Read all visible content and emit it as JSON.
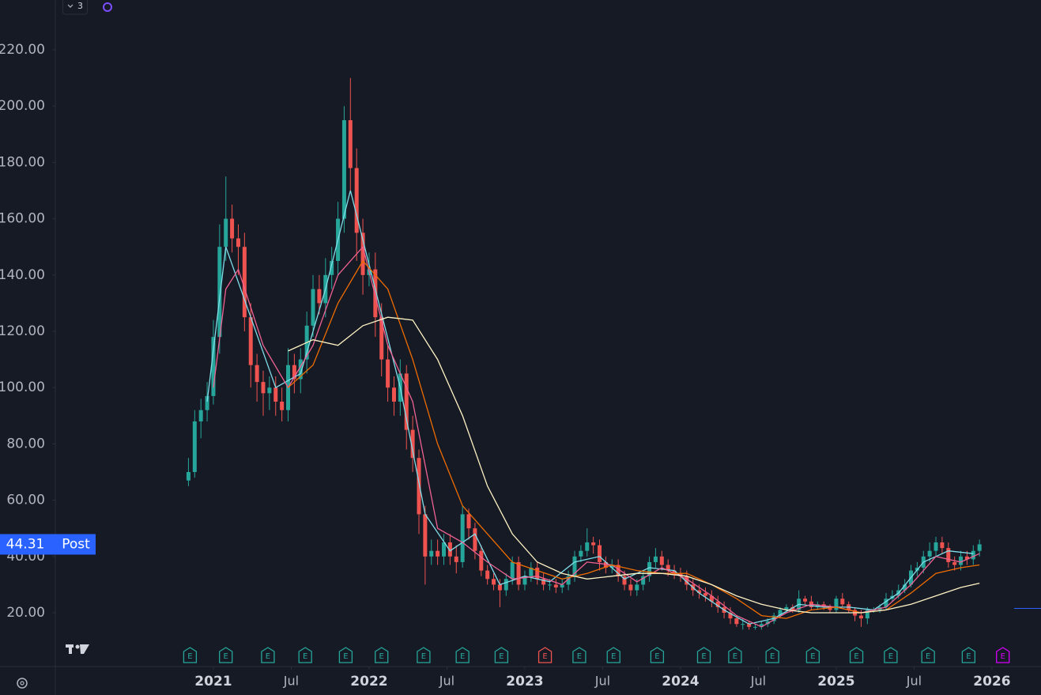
{
  "chart_data": {
    "type": "candlestick",
    "indicator_count": 3,
    "session_label": "Post",
    "up_color": "#26a69a",
    "down_color": "#ef5350",
    "xlim": [
      2019.985,
      2026.315
    ],
    "ylim": [
      0.9,
      237.7
    ],
    "yticks": [
      {
        "value": 20,
        "label": "20.00"
      },
      {
        "value": 40,
        "label": "40.00"
      },
      {
        "value": 60,
        "label": "60.00"
      },
      {
        "value": 80,
        "label": "80.00"
      },
      {
        "value": 100,
        "label": "100.00"
      },
      {
        "value": 120,
        "label": "120.00"
      },
      {
        "value": 140,
        "label": "140.00"
      },
      {
        "value": 160,
        "label": "160.00"
      },
      {
        "value": 180,
        "label": "180.00"
      },
      {
        "value": 200,
        "label": "200.00"
      },
      {
        "value": 220,
        "label": "220.00"
      }
    ],
    "xticks": [
      2021,
      {
        "value": 2021.5,
        "label": "Jul"
      },
      2022,
      {
        "value": 2022.5,
        "label": "Jul"
      },
      2023,
      {
        "value": 2023.5,
        "label": "Jul"
      },
      2024,
      {
        "value": 2024.5,
        "label": "Jul"
      },
      2025,
      {
        "value": 2025.5,
        "label": "Jul"
      },
      2026
    ],
    "x": [
      2020.84,
      2020.88,
      2020.92,
      2020.96,
      2021,
      2021.04,
      2021.08,
      2021.12,
      2021.16,
      2021.2,
      2021.24,
      2021.28,
      2021.32,
      2021.36,
      2021.4,
      2021.44,
      2021.48,
      2021.52,
      2021.56,
      2021.6,
      2021.64,
      2021.68,
      2021.72,
      2021.76,
      2021.8,
      2021.84,
      2021.88,
      2021.92,
      2021.96,
      2022,
      2022.04,
      2022.08,
      2022.12,
      2022.16,
      2022.2,
      2022.24,
      2022.28,
      2022.32,
      2022.36,
      2022.4,
      2022.44,
      2022.48,
      2022.52,
      2022.56,
      2022.6,
      2022.64,
      2022.68,
      2022.72,
      2022.76,
      2022.8,
      2022.84,
      2022.88,
      2022.92,
      2022.96,
      2023,
      2023.04,
      2023.08,
      2023.12,
      2023.16,
      2023.2,
      2023.24,
      2023.28,
      2023.32,
      2023.36,
      2023.4,
      2023.44,
      2023.48,
      2023.52,
      2023.56,
      2023.6,
      2023.64,
      2023.68,
      2023.72,
      2023.76,
      2023.8,
      2023.84,
      2023.88,
      2023.92,
      2023.96,
      2024,
      2024.04,
      2024.08,
      2024.12,
      2024.16,
      2024.2,
      2024.24,
      2024.28,
      2024.32,
      2024.36,
      2024.4,
      2024.44,
      2024.48,
      2024.52,
      2024.56,
      2024.6,
      2024.64,
      2024.68,
      2024.72,
      2024.76,
      2024.8,
      2024.84,
      2024.88,
      2024.92,
      2024.96,
      2025,
      2025.04,
      2025.08,
      2025.12,
      2025.16,
      2025.2,
      2025.24,
      2025.28,
      2025.32,
      2025.36,
      2025.4,
      2025.44,
      2025.48,
      2025.52,
      2025.56,
      2025.6,
      2025.64,
      2025.68,
      2025.72,
      2025.76,
      2025.8,
      2025.84,
      2025.88,
      2025.92
    ],
    "open": [
      67,
      70,
      88,
      92,
      97,
      118,
      150,
      160,
      153,
      150,
      125,
      108,
      102,
      98,
      100,
      95,
      92,
      108,
      103,
      110,
      122,
      135,
      130,
      140,
      145,
      160,
      195,
      178,
      155,
      140,
      142,
      125,
      110,
      100,
      95,
      105,
      85,
      75,
      55,
      40,
      42,
      40,
      45,
      40,
      38,
      55,
      50,
      42,
      35,
      32,
      30,
      28,
      32,
      38,
      30,
      33,
      36,
      32,
      30,
      30,
      29,
      30,
      33,
      40,
      42,
      45,
      44,
      38,
      36,
      37,
      33,
      30,
      28,
      30,
      33,
      38,
      40,
      37,
      35,
      34,
      33,
      30,
      28,
      27,
      26,
      24,
      22,
      20,
      18,
      16,
      16,
      15,
      15,
      16,
      17,
      19,
      21,
      22,
      21,
      25,
      24,
      22,
      23,
      22,
      21,
      25,
      23,
      21,
      19,
      18,
      21,
      21,
      22,
      25,
      26,
      28,
      30,
      35,
      36,
      40,
      42,
      45,
      43,
      38,
      37,
      40,
      39,
      42
    ],
    "high": [
      75,
      92,
      96,
      102,
      124,
      158,
      175,
      165,
      158,
      155,
      130,
      112,
      106,
      104,
      104,
      100,
      114,
      112,
      114,
      127,
      140,
      140,
      146,
      150,
      166,
      200,
      210,
      185,
      160,
      148,
      148,
      130,
      115,
      104,
      110,
      108,
      90,
      78,
      58,
      46,
      46,
      48,
      48,
      44,
      58,
      57,
      52,
      44,
      37,
      34,
      32,
      34,
      40,
      40,
      35,
      38,
      38,
      34,
      32,
      32,
      32,
      35,
      42,
      44,
      50,
      47,
      46,
      40,
      39,
      39,
      35,
      32,
      32,
      35,
      40,
      43,
      42,
      39,
      37,
      36,
      35,
      32,
      30,
      29,
      28,
      26,
      24,
      22,
      19,
      18,
      17,
      16,
      17,
      18,
      20,
      22,
      23,
      23,
      28,
      26,
      26,
      24,
      24,
      23,
      26,
      27,
      24,
      22,
      21,
      22,
      22,
      23,
      27,
      28,
      30,
      32,
      37,
      38,
      42,
      45,
      47,
      47,
      45,
      40,
      42,
      42,
      44,
      46
    ],
    "low": [
      65,
      68,
      82,
      88,
      94,
      112,
      145,
      148,
      140,
      120,
      100,
      95,
      90,
      92,
      90,
      88,
      88,
      98,
      98,
      105,
      118,
      126,
      125,
      135,
      140,
      155,
      170,
      145,
      133,
      136,
      118,
      104,
      95,
      90,
      90,
      78,
      70,
      48,
      30,
      37,
      37,
      37,
      37,
      34,
      36,
      46,
      39,
      33,
      30,
      28,
      22,
      26,
      30,
      28,
      28,
      31,
      30,
      28,
      28,
      27,
      27,
      28,
      31,
      38,
      40,
      41,
      35,
      34,
      34,
      31,
      28,
      26,
      26,
      28,
      31,
      36,
      35,
      33,
      32,
      31,
      28,
      26,
      25,
      24,
      22,
      20,
      18,
      16,
      15,
      14,
      14,
      14,
      14,
      15,
      16,
      18,
      20,
      20,
      20,
      23,
      21,
      21,
      21,
      20,
      20,
      22,
      20,
      17,
      15,
      16,
      20,
      20,
      21,
      24,
      25,
      27,
      29,
      33,
      34,
      38,
      40,
      41,
      36,
      35,
      35,
      37,
      37,
      40
    ],
    "close": [
      70,
      88,
      92,
      97,
      118,
      150,
      160,
      153,
      150,
      125,
      108,
      102,
      98,
      100,
      95,
      92,
      108,
      103,
      110,
      122,
      135,
      130,
      140,
      145,
      160,
      195,
      178,
      155,
      140,
      142,
      125,
      110,
      100,
      95,
      105,
      85,
      75,
      55,
      40,
      42,
      40,
      45,
      40,
      38,
      55,
      50,
      42,
      35,
      32,
      30,
      28,
      32,
      38,
      30,
      33,
      36,
      32,
      30,
      30,
      29,
      30,
      33,
      40,
      42,
      45,
      44,
      38,
      36,
      37,
      33,
      30,
      28,
      30,
      33,
      38,
      40,
      37,
      35,
      34,
      33,
      30,
      28,
      27,
      26,
      24,
      22,
      20,
      18,
      16,
      16,
      15,
      15,
      16,
      17,
      19,
      21,
      22,
      21,
      25,
      24,
      22,
      23,
      22,
      21,
      25,
      23,
      21,
      19,
      18,
      21,
      21,
      22,
      25,
      26,
      28,
      30,
      35,
      36,
      40,
      42,
      45,
      43,
      38,
      37,
      40,
      39,
      42,
      44.31
    ],
    "moving_averages": [
      {
        "color": "#80deea",
        "x": [
          2020.96,
          2021.08,
          2021.24,
          2021.4,
          2021.56,
          2021.72,
          2021.88,
          2022.04,
          2022.2,
          2022.36,
          2022.52,
          2022.68,
          2022.84,
          2023,
          2023.16,
          2023.32,
          2023.48,
          2023.64,
          2023.8,
          2023.96,
          2024.12,
          2024.28,
          2024.44,
          2024.6,
          2024.76,
          2024.92,
          2025.08,
          2025.24,
          2025.4,
          2025.56,
          2025.72,
          2025.88
        ],
        "values": [
          95,
          150,
          125,
          100,
          105,
          135,
          170,
          135,
          100,
          55,
          42,
          48,
          30,
          33,
          31,
          38,
          40,
          32,
          36,
          35,
          27,
          21,
          16,
          18,
          23,
          22,
          22,
          21,
          27,
          38,
          42,
          41
        ]
      },
      {
        "color": "#f06292",
        "x": [
          2021,
          2021.08,
          2021.16,
          2021.32,
          2021.48,
          2021.64,
          2021.8,
          2021.96,
          2022.12,
          2022.28,
          2022.44,
          2022.6,
          2022.76,
          2022.92,
          2023.08,
          2023.24,
          2023.4,
          2023.56,
          2023.72,
          2023.88,
          2024.04,
          2024.2,
          2024.36,
          2024.52,
          2024.68,
          2024.84,
          2025,
          2025.16,
          2025.32,
          2025.48,
          2025.64,
          2025.8,
          2025.92
        ],
        "values": [
          100,
          135,
          142,
          115,
          100,
          115,
          140,
          150,
          115,
          95,
          50,
          45,
          38,
          32,
          33,
          30,
          38,
          37,
          31,
          36,
          32,
          26,
          19,
          15,
          20,
          23,
          22,
          20,
          22,
          30,
          40,
          38,
          41
        ]
      },
      {
        "color": "#ef6c00",
        "x": [
          2021.48,
          2021.64,
          2021.8,
          2021.96,
          2022.12,
          2022.28,
          2022.44,
          2022.6,
          2022.76,
          2022.92,
          2023.08,
          2023.24,
          2023.4,
          2023.56,
          2023.72,
          2023.88,
          2024.04,
          2024.2,
          2024.36,
          2024.52,
          2024.68,
          2024.84,
          2025,
          2025.16,
          2025.32,
          2025.48,
          2025.64,
          2025.8,
          2025.92
        ],
        "values": [
          100,
          108,
          130,
          145,
          135,
          110,
          80,
          58,
          48,
          38,
          35,
          32,
          34,
          37,
          35,
          34,
          34,
          30,
          25,
          19,
          18,
          21,
          22,
          20,
          21,
          27,
          34,
          36,
          37
        ]
      },
      {
        "color": "#fff3c4",
        "x": [
          2021.48,
          2021.64,
          2021.8,
          2021.96,
          2022.12,
          2022.28,
          2022.44,
          2022.6,
          2022.76,
          2022.92,
          2023.08,
          2023.24,
          2023.4,
          2023.56,
          2023.72,
          2023.88,
          2024.04,
          2024.2,
          2024.36,
          2024.52,
          2024.68,
          2024.84,
          2025,
          2025.16,
          2025.32,
          2025.48,
          2025.64,
          2025.8,
          2025.92
        ],
        "values": [
          113,
          117,
          115,
          122,
          125,
          124,
          110,
          90,
          65,
          48,
          38,
          34,
          32,
          33,
          34,
          34,
          33,
          30,
          26,
          23,
          21,
          20,
          20,
          20,
          21,
          23,
          26,
          29,
          30.5
        ]
      }
    ],
    "earnings": [
      {
        "x": 2020.85,
        "label": "E",
        "color": "#26a69a"
      },
      {
        "x": 2021.08,
        "label": "E",
        "color": "#26a69a"
      },
      {
        "x": 2021.35,
        "label": "E",
        "color": "#26a69a"
      },
      {
        "x": 2021.59,
        "label": "E",
        "color": "#26a69a"
      },
      {
        "x": 2021.85,
        "label": "E",
        "color": "#26a69a"
      },
      {
        "x": 2022.08,
        "label": "E",
        "color": "#26a69a"
      },
      {
        "x": 2022.35,
        "label": "E",
        "color": "#26a69a"
      },
      {
        "x": 2022.6,
        "label": "E",
        "color": "#26a69a"
      },
      {
        "x": 2022.85,
        "label": "E",
        "color": "#26a69a"
      },
      {
        "x": 2023.13,
        "label": "E",
        "color": "#ef5350"
      },
      {
        "x": 2023.35,
        "label": "E",
        "color": "#26a69a"
      },
      {
        "x": 2023.57,
        "label": "E",
        "color": "#26a69a"
      },
      {
        "x": 2023.85,
        "label": "E",
        "color": "#26a69a"
      },
      {
        "x": 2024.15,
        "label": "E",
        "color": "#26a69a"
      },
      {
        "x": 2024.35,
        "label": "E",
        "color": "#26a69a"
      },
      {
        "x": 2024.59,
        "label": "E",
        "color": "#26a69a"
      },
      {
        "x": 2024.85,
        "label": "E",
        "color": "#26a69a"
      },
      {
        "x": 2025.13,
        "label": "E",
        "color": "#26a69a"
      },
      {
        "x": 2025.35,
        "label": "E",
        "color": "#26a69a"
      },
      {
        "x": 2025.59,
        "label": "E",
        "color": "#26a69a"
      },
      {
        "x": 2025.85,
        "label": "E",
        "color": "#26a69a"
      },
      {
        "x": 2026.07,
        "label": "E",
        "color": "#d500f9"
      }
    ]
  }
}
